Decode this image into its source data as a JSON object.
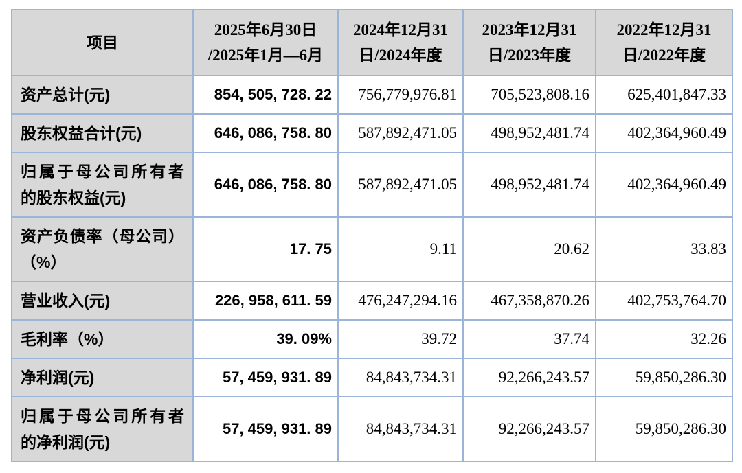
{
  "table": {
    "colors": {
      "header_bg": "#d8d8d8",
      "label_bg": "#d8d8d8",
      "border": "#9cb4d8",
      "text": "#000000"
    },
    "columns": [
      {
        "label": "项目"
      },
      {
        "label": "2025年6月30日\n/2025年1月—6月"
      },
      {
        "label": "2024年12月31\n日/2024年度"
      },
      {
        "label": "2023年12月31\n日/2023年度"
      },
      {
        "label": "2022年12月31\n日/2022年度"
      }
    ],
    "rows": [
      {
        "label": "资产总计(元)",
        "values": [
          "854, 505, 728. 22",
          "756,779,976.81",
          "705,523,808.16",
          "625,401,847.33"
        ]
      },
      {
        "label": "股东权益合计(元)",
        "values": [
          "646, 086, 758. 80",
          "587,892,471.05",
          "498,952,481.74",
          "402,364,960.49"
        ]
      },
      {
        "label": "归属于母公司所有者\n的股东权益(元)",
        "values": [
          "646, 086, 758. 80",
          "587,892,471.05",
          "498,952,481.74",
          "402,364,960.49"
        ]
      },
      {
        "label": "资产负债率（母公司）\n（%）",
        "values": [
          "17. 75",
          "9.11",
          "20.62",
          "33.83"
        ]
      },
      {
        "label": "营业收入(元)",
        "values": [
          "226, 958, 611. 59",
          "476,247,294.16",
          "467,358,870.26",
          "402,753,764.70"
        ]
      },
      {
        "label": "毛利率（%）",
        "values": [
          "39. 09%",
          "39.72",
          "37.74",
          "32.26"
        ]
      },
      {
        "label": "净利润(元)",
        "values": [
          "57, 459, 931. 89",
          "84,843,734.31",
          "92,266,243.57",
          "59,850,286.30"
        ]
      },
      {
        "label": "归属于母公司所有者\n的净利润(元)",
        "values": [
          "57, 459, 931. 89",
          "84,843,734.31",
          "92,266,243.57",
          "59,850,286.30"
        ]
      }
    ]
  }
}
